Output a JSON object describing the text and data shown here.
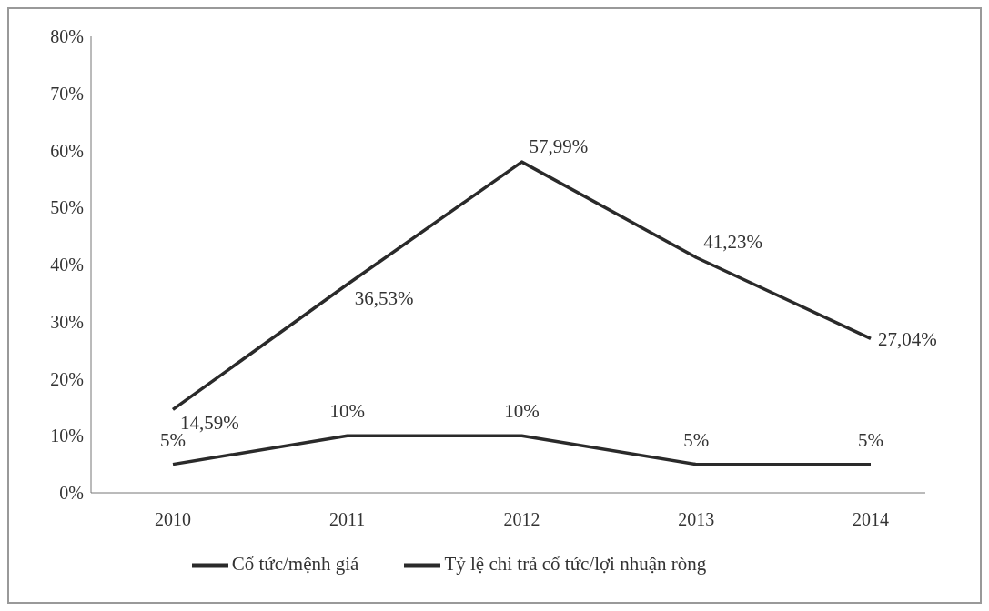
{
  "chart_data": {
    "type": "line",
    "categories": [
      "2010",
      "2011",
      "2012",
      "2013",
      "2014"
    ],
    "series": [
      {
        "name": "Cổ tức/mệnh giá",
        "color": "#2a2a2a",
        "values": [
          5,
          10,
          10,
          5,
          5
        ],
        "value_labels": [
          "5%",
          "10%",
          "10%",
          "5%",
          "5%"
        ]
      },
      {
        "name": "Tỷ lệ chi trả cổ tức/lợi nhuận ròng",
        "color": "#2a2a2a",
        "values": [
          14.59,
          36.53,
          57.99,
          41.23,
          27.04
        ],
        "value_labels": [
          "14,59%",
          "36,53%",
          "57,99%",
          "41,23%",
          "27,04%"
        ]
      }
    ],
    "ylim": [
      0,
      80
    ],
    "yticks": [
      {
        "value": 0,
        "label": "0%"
      },
      {
        "value": 10,
        "label": "10%"
      },
      {
        "value": 20,
        "label": "20%"
      },
      {
        "value": 30,
        "label": "30%"
      },
      {
        "value": 40,
        "label": "40%"
      },
      {
        "value": 50,
        "label": "50%"
      },
      {
        "value": 60,
        "label": "60%"
      },
      {
        "value": 70,
        "label": "70%"
      },
      {
        "value": 80,
        "label": "80%"
      }
    ],
    "grid": false,
    "legend": "bottom",
    "marker": "none",
    "line_style": "solid"
  }
}
